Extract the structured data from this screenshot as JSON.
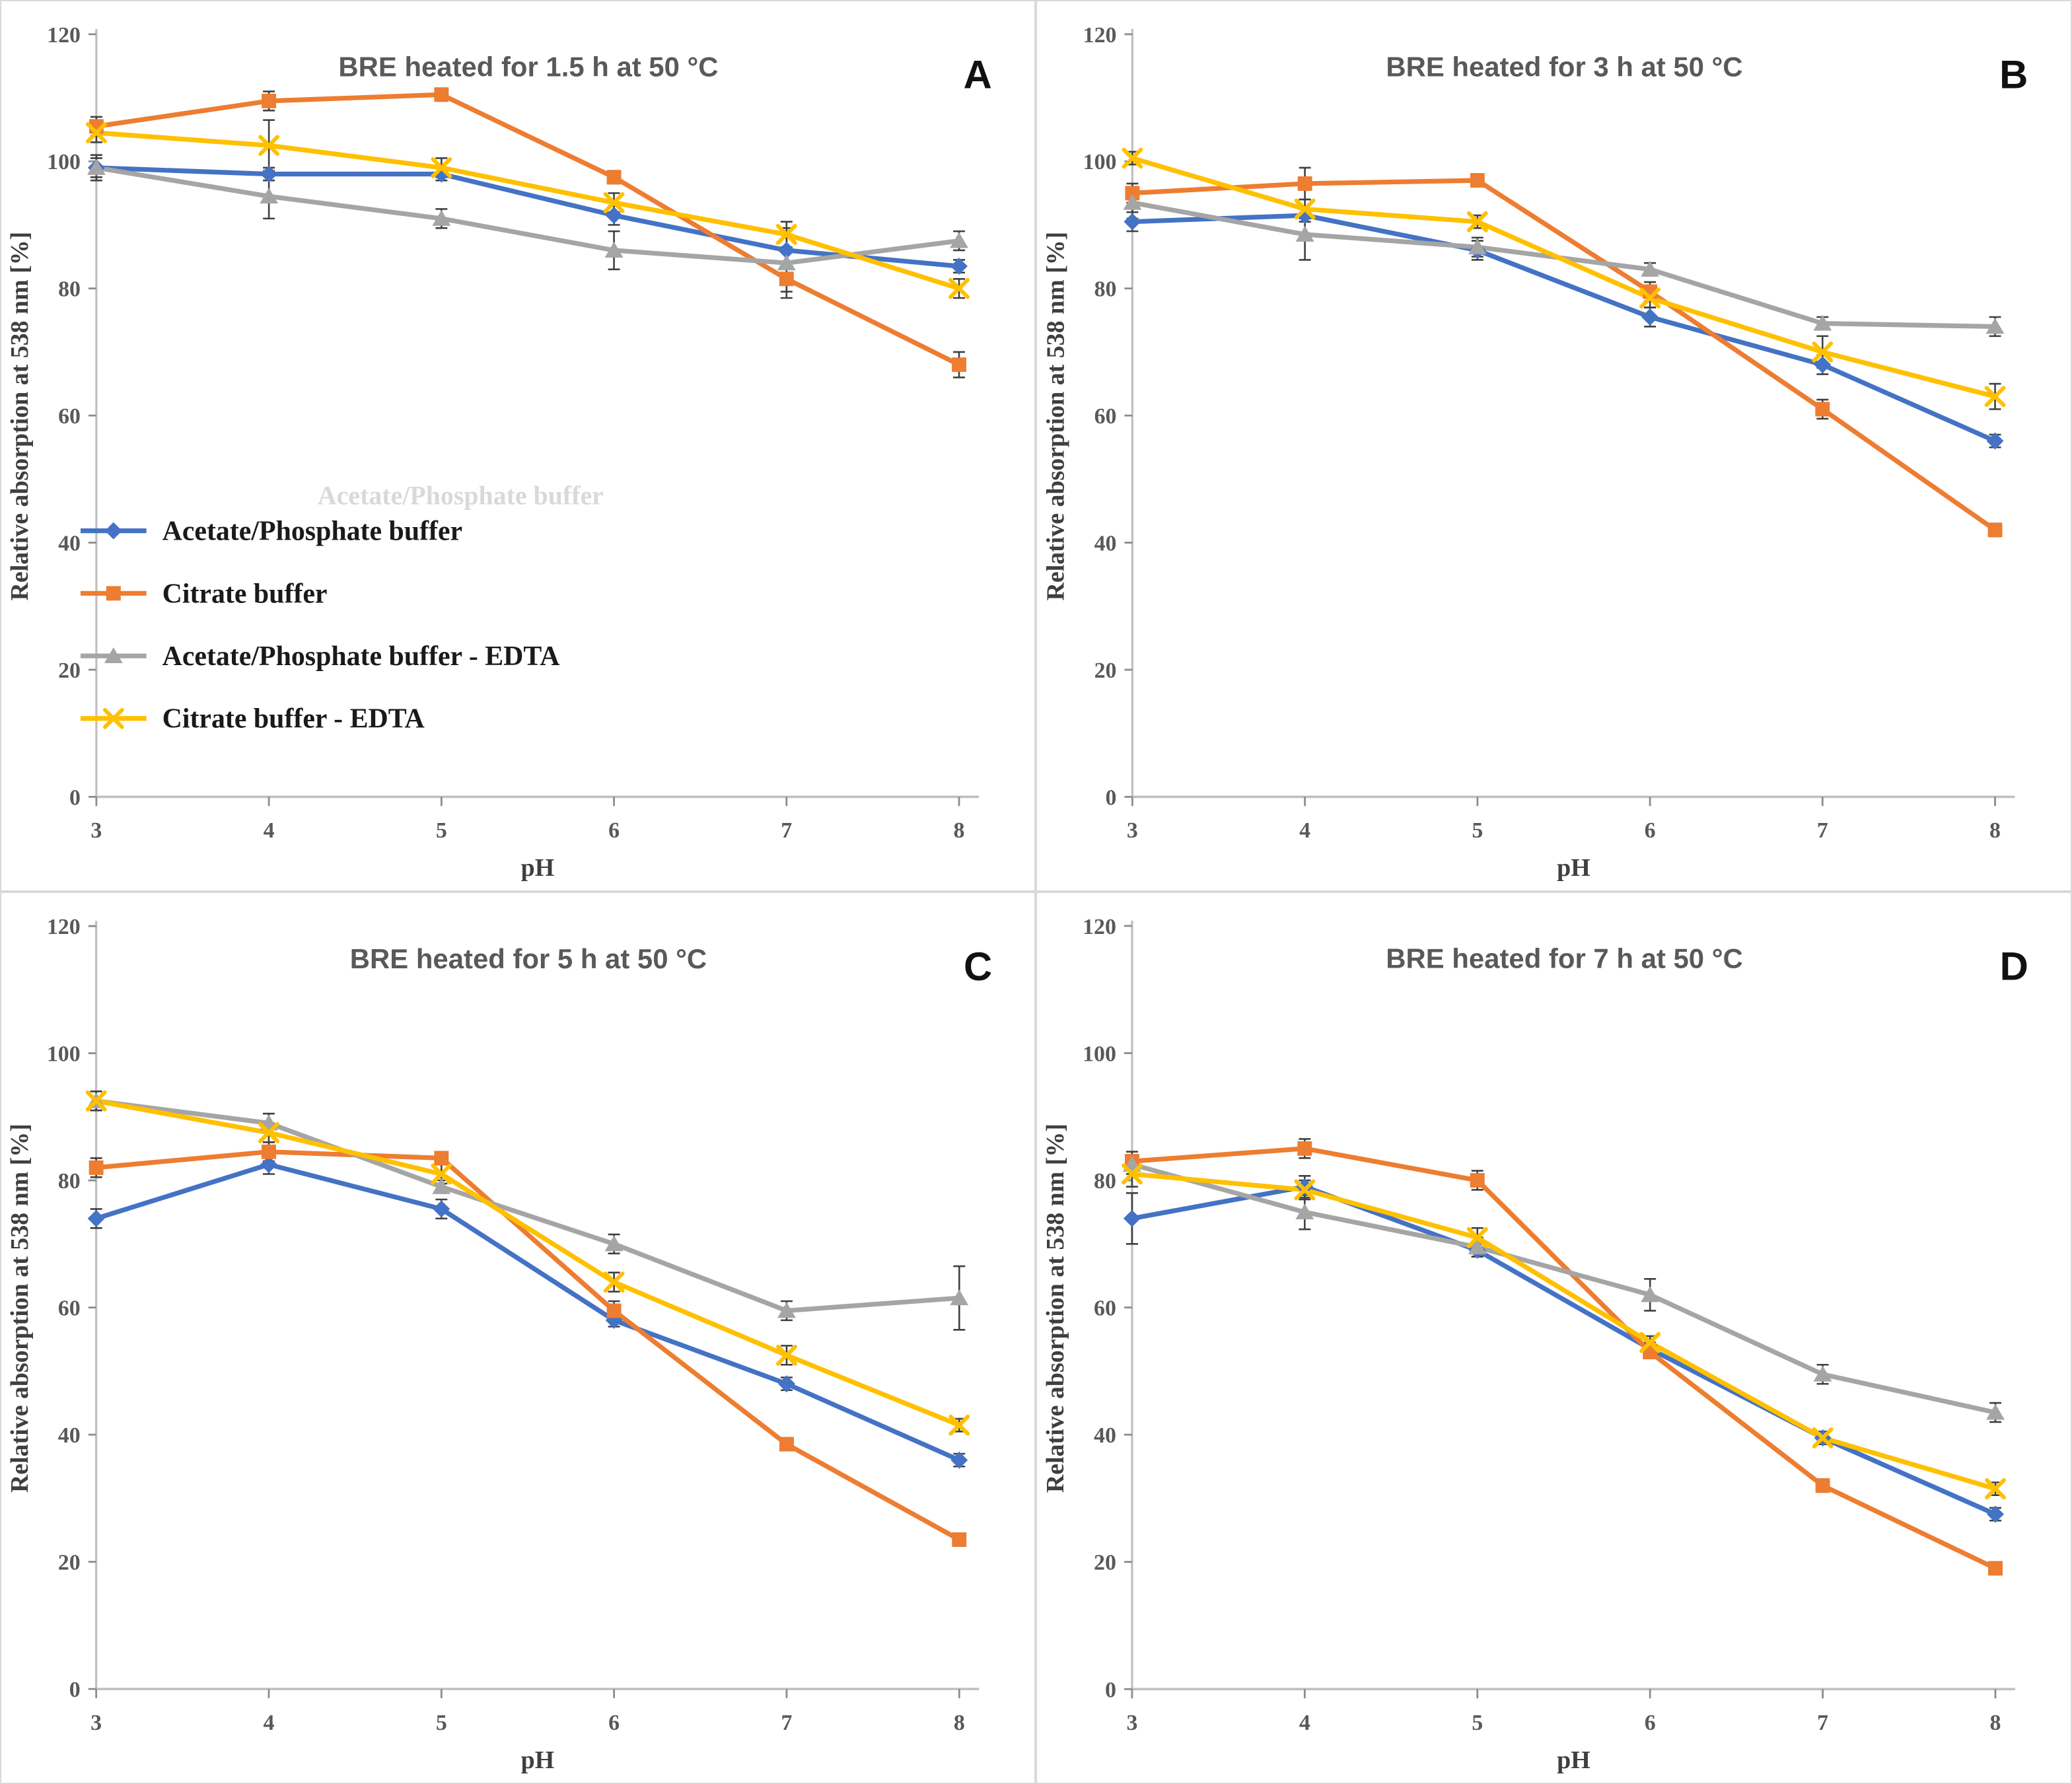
{
  "figure": {
    "background": "#ffffff",
    "border_color": "#d9d9d9",
    "xlabel": "pH",
    "ylabel": "Relative absorption at 538 nm [%]",
    "axis_color": "#bfbfbf",
    "tick_color": "#8c8c8c",
    "error_bar_color": "#404040",
    "title_color": "#595959",
    "legend_ghost_text": "Acetate/Phosphate buffer"
  },
  "chart_data": [
    {
      "type": "line",
      "panel_label": "A",
      "title": "BRE heated for 1.5 h at 50 °C",
      "xlabel": "pH",
      "ylabel": "Relative absorption at 538 nm [%]",
      "x": [
        3,
        4,
        5,
        6,
        7,
        8
      ],
      "ylim": [
        0,
        120
      ],
      "ytick_step": 20,
      "grid": false,
      "legend_visible": true,
      "legend_position": "middle-left",
      "series": [
        {
          "name": "Acetate/Phosphate buffer",
          "color": "#4472C4",
          "marker": "diamond",
          "values": [
            99,
            98,
            98,
            91.5,
            86,
            83.5
          ],
          "errors": [
            1.5,
            1,
            1,
            1.5,
            2.5,
            1
          ]
        },
        {
          "name": "Citrate buffer",
          "color": "#ED7D31",
          "marker": "square",
          "values": [
            105.5,
            109.5,
            110.5,
            97.5,
            81.5,
            68
          ],
          "errors": [
            1.5,
            1.5,
            1,
            1,
            2,
            2
          ]
        },
        {
          "name": "Acetate/Phosphate buffer - EDTA",
          "color": "#A5A5A5",
          "marker": "triangle",
          "values": [
            99,
            94.5,
            91,
            86,
            84,
            87.5
          ],
          "errors": [
            2,
            3.5,
            1.5,
            3,
            5.5,
            1.5
          ]
        },
        {
          "name": "Citrate buffer - EDTA",
          "color": "#FFC000",
          "marker": "x",
          "values": [
            104.5,
            102.5,
            99,
            93.5,
            88.5,
            80
          ],
          "errors": [
            1.5,
            4,
            1.5,
            1.5,
            2,
            1.5
          ]
        }
      ]
    },
    {
      "type": "line",
      "panel_label": "B",
      "title": "BRE heated for 3 h at 50 °C",
      "xlabel": "pH",
      "ylabel": "Relative absorption at 538 nm [%]",
      "x": [
        3,
        4,
        5,
        6,
        7,
        8
      ],
      "ylim": [
        0,
        120
      ],
      "ytick_step": 20,
      "grid": false,
      "legend_visible": false,
      "series": [
        {
          "name": "Acetate/Phosphate buffer",
          "color": "#4472C4",
          "marker": "diamond",
          "values": [
            90.5,
            91.5,
            86,
            75.5,
            68,
            56
          ],
          "errors": [
            1.5,
            1,
            1.5,
            1.5,
            1.5,
            1
          ]
        },
        {
          "name": "Citrate buffer",
          "color": "#ED7D31",
          "marker": "square",
          "values": [
            95,
            96.5,
            97,
            79.5,
            61,
            42
          ],
          "errors": [
            1.5,
            2.5,
            1,
            1.5,
            1.5,
            1
          ]
        },
        {
          "name": "Acetate/Phosphate buffer - EDTA",
          "color": "#A5A5A5",
          "marker": "triangle",
          "values": [
            93.5,
            88.5,
            86.5,
            83,
            74.5,
            74
          ],
          "errors": [
            2.5,
            4,
            1.5,
            1,
            1,
            1.5
          ]
        },
        {
          "name": "Citrate buffer - EDTA",
          "color": "#FFC000",
          "marker": "x",
          "values": [
            100.5,
            92.5,
            90.5,
            78.5,
            70,
            63
          ],
          "errors": [
            1,
            1.5,
            1,
            1.5,
            2.5,
            2
          ]
        }
      ]
    },
    {
      "type": "line",
      "panel_label": "C",
      "title": "BRE heated for 5 h at 50 °C",
      "xlabel": "pH",
      "ylabel": "Relative absorption at 538 nm [%]",
      "x": [
        3,
        4,
        5,
        6,
        7,
        8
      ],
      "ylim": [
        0,
        120
      ],
      "ytick_step": 20,
      "grid": false,
      "legend_visible": false,
      "series": [
        {
          "name": "Acetate/Phosphate buffer",
          "color": "#4472C4",
          "marker": "diamond",
          "values": [
            74,
            82.5,
            75.5,
            58,
            48,
            36
          ],
          "errors": [
            1.5,
            1.5,
            1.5,
            1,
            1,
            1
          ]
        },
        {
          "name": "Citrate buffer",
          "color": "#ED7D31",
          "marker": "square",
          "values": [
            82,
            84.5,
            83.5,
            59.5,
            38.5,
            23.5
          ],
          "errors": [
            1.5,
            1.5,
            1,
            1.5,
            1,
            1
          ]
        },
        {
          "name": "Acetate/Phosphate buffer - EDTA",
          "color": "#A5A5A5",
          "marker": "triangle",
          "values": [
            92.5,
            89,
            79,
            70,
            59.5,
            61.5
          ],
          "errors": [
            1.5,
            1.5,
            1,
            1.5,
            1.5,
            5
          ]
        },
        {
          "name": "Citrate buffer - EDTA",
          "color": "#FFC000",
          "marker": "x",
          "values": [
            92.5,
            87.5,
            81,
            64,
            52.5,
            41.5
          ],
          "errors": [
            1.5,
            1.5,
            1.5,
            1.5,
            1.5,
            1
          ]
        }
      ]
    },
    {
      "type": "line",
      "panel_label": "D",
      "title": "BRE heated for 7 h at 50 °C",
      "xlabel": "pH",
      "ylabel": "Relative absorption at 538 nm [%]",
      "x": [
        3,
        4,
        5,
        6,
        7,
        8
      ],
      "ylim": [
        0,
        120
      ],
      "ytick_step": 20,
      "grid": false,
      "legend_visible": false,
      "series": [
        {
          "name": "Acetate/Phosphate buffer",
          "color": "#4472C4",
          "marker": "diamond",
          "values": [
            74,
            79,
            69,
            53.5,
            39.5,
            27.5
          ],
          "errors": [
            4,
            1.7,
            1,
            1,
            1,
            1
          ]
        },
        {
          "name": "Citrate buffer",
          "color": "#ED7D31",
          "marker": "square",
          "values": [
            83,
            85,
            80,
            53,
            32,
            19
          ],
          "errors": [
            1.5,
            1.5,
            1.5,
            1,
            1,
            1
          ]
        },
        {
          "name": "Acetate/Phosphate buffer - EDTA",
          "color": "#A5A5A5",
          "marker": "triangle",
          "values": [
            82.5,
            75,
            69.5,
            62,
            49.5,
            43.5
          ],
          "errors": [
            1.5,
            2.7,
            1.5,
            2.5,
            1.5,
            1.5
          ]
        },
        {
          "name": "Citrate buffer - EDTA",
          "color": "#FFC000",
          "marker": "x",
          "values": [
            81,
            78.5,
            71,
            54.5,
            39.5,
            31.5
          ],
          "errors": [
            2,
            1.5,
            1.5,
            1,
            1,
            1
          ]
        }
      ]
    }
  ]
}
